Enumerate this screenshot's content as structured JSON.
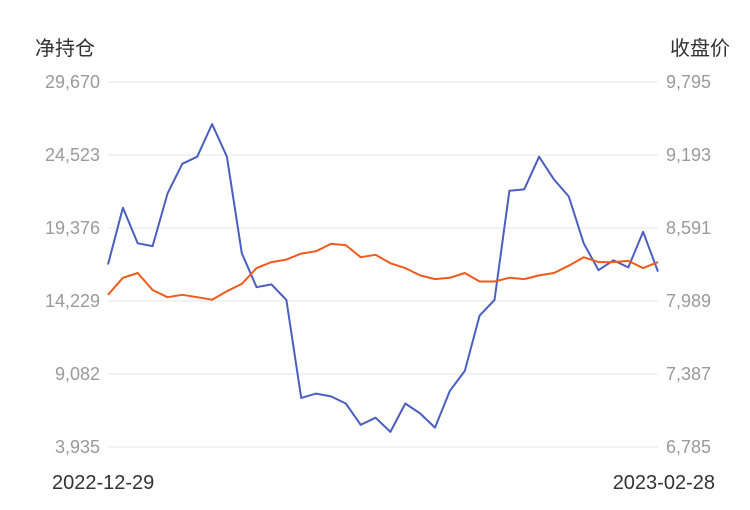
{
  "chart_data": {
    "type": "line",
    "left_axis_title": "净持仓",
    "right_axis_title": "收盘价",
    "left_ticks": [
      "29,670",
      "24,523",
      "19,376",
      "14,229",
      "9,082",
      "3,935"
    ],
    "right_ticks": [
      "9,795",
      "9,193",
      "8,591",
      "7,989",
      "7,387",
      "6,785"
    ],
    "left_range": [
      3935,
      29670
    ],
    "right_range": [
      6785,
      9795
    ],
    "x_start_label": "2022-12-29",
    "x_end_label": "2023-02-28",
    "grid": true,
    "series": [
      {
        "axis": "left",
        "color": "#4a5fc1",
        "values": [
          16800,
          20800,
          18300,
          18100,
          21800,
          23900,
          24400,
          26700,
          24400,
          17600,
          15200,
          15400,
          14300,
          7400,
          7700,
          7500,
          7000,
          5500,
          6000,
          5000,
          7000,
          6300,
          5300,
          7900,
          9300,
          13200,
          14300,
          22000,
          22100,
          24400,
          22800,
          21600,
          18300,
          16400,
          17100,
          16600,
          19100,
          16300
        ]
      },
      {
        "axis": "right",
        "color": "#f05a1a",
        "values": [
          8040,
          8180,
          8220,
          8080,
          8020,
          8040,
          8020,
          8000,
          8070,
          8130,
          8260,
          8310,
          8330,
          8380,
          8400,
          8460,
          8450,
          8350,
          8370,
          8300,
          8260,
          8200,
          8170,
          8180,
          8220,
          8150,
          8150,
          8180,
          8170,
          8200,
          8220,
          8280,
          8350,
          8310,
          8310,
          8320,
          8260,
          8310
        ]
      }
    ]
  }
}
